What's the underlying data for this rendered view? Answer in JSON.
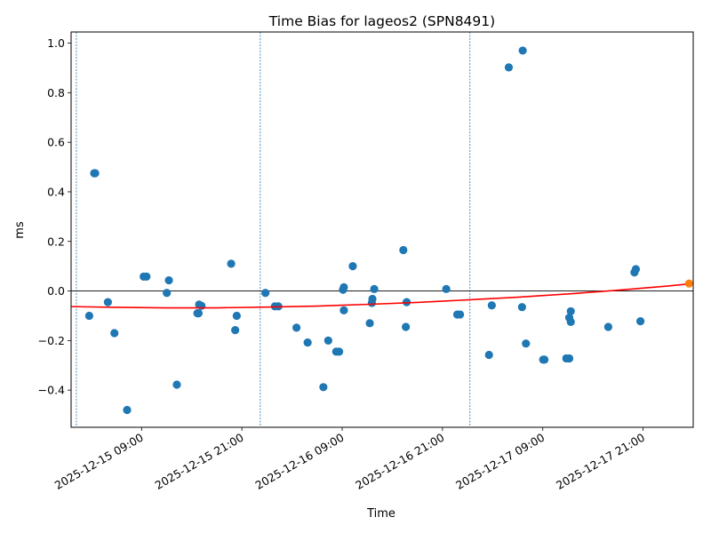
{
  "chart_data": {
    "type": "scatter",
    "title": "Time Bias for lageos2 (SPN8491)",
    "xlabel": "Time",
    "ylabel": "ms",
    "xlim": [
      "2025-12-15T00:34:00",
      "2025-12-18T03:00:00"
    ],
    "ylim": [
      -0.55,
      1.045
    ],
    "x_ticks": [
      {
        "t": "2025-12-15T09:00:00",
        "label": "2025-12-15 09:00"
      },
      {
        "t": "2025-12-15T21:00:00",
        "label": "2025-12-15 21:00"
      },
      {
        "t": "2025-12-16T09:00:00",
        "label": "2025-12-16 09:00"
      },
      {
        "t": "2025-12-16T21:00:00",
        "label": "2025-12-16 21:00"
      },
      {
        "t": "2025-12-17T09:00:00",
        "label": "2025-12-17 09:00"
      },
      {
        "t": "2025-12-17T21:00:00",
        "label": "2025-12-17 21:00"
      }
    ],
    "y_ticks": [
      -0.4,
      -0.2,
      0.0,
      0.2,
      0.4,
      0.6,
      0.8,
      1.0
    ],
    "vertical_lines": [
      "2025-12-15T01:12:00",
      "2025-12-15T23:12:00",
      "2025-12-17T00:17:00"
    ],
    "zero_line": 0.0,
    "grid": false,
    "point_color": "#1f77b4",
    "fit_color": "#ff0000",
    "highlight_color": "#ff7f0e",
    "vline_color": "#1f77b4",
    "points": [
      {
        "t": "2025-12-15T02:44:00",
        "y": -0.1
      },
      {
        "t": "2025-12-15T03:20:00",
        "y": 0.475
      },
      {
        "t": "2025-12-15T03:27:00",
        "y": 0.475
      },
      {
        "t": "2025-12-15T04:58:00",
        "y": -0.045
      },
      {
        "t": "2025-12-15T05:45:00",
        "y": -0.17
      },
      {
        "t": "2025-12-15T07:16:00",
        "y": -0.48
      },
      {
        "t": "2025-12-15T09:15:00",
        "y": 0.058
      },
      {
        "t": "2025-12-15T09:35:00",
        "y": 0.058
      },
      {
        "t": "2025-12-15T12:01:00",
        "y": -0.008
      },
      {
        "t": "2025-12-15T12:16:00",
        "y": 0.043
      },
      {
        "t": "2025-12-15T13:13:00",
        "y": -0.378
      },
      {
        "t": "2025-12-15T15:41:00",
        "y": -0.09
      },
      {
        "t": "2025-12-15T15:49:00",
        "y": -0.09
      },
      {
        "t": "2025-12-15T15:53:00",
        "y": -0.055
      },
      {
        "t": "2025-12-15T16:10:00",
        "y": -0.06
      },
      {
        "t": "2025-12-15T19:43:00",
        "y": 0.11
      },
      {
        "t": "2025-12-15T20:12:00",
        "y": -0.158
      },
      {
        "t": "2025-12-15T20:23:00",
        "y": -0.1
      },
      {
        "t": "2025-12-15T23:49:00",
        "y": -0.008
      },
      {
        "t": "2025-12-16T00:57:00",
        "y": -0.062
      },
      {
        "t": "2025-12-16T01:22:00",
        "y": -0.062
      },
      {
        "t": "2025-12-16T03:32:00",
        "y": -0.148
      },
      {
        "t": "2025-12-16T04:52:00",
        "y": -0.208
      },
      {
        "t": "2025-12-16T06:45:00",
        "y": -0.388
      },
      {
        "t": "2025-12-16T07:20:00",
        "y": -0.2
      },
      {
        "t": "2025-12-16T08:17:00",
        "y": -0.245
      },
      {
        "t": "2025-12-16T08:38:00",
        "y": -0.245
      },
      {
        "t": "2025-12-16T09:06:00",
        "y": 0.005
      },
      {
        "t": "2025-12-16T09:12:00",
        "y": 0.015
      },
      {
        "t": "2025-12-16T09:12:00",
        "y": -0.078
      },
      {
        "t": "2025-12-16T10:16:00",
        "y": 0.1
      },
      {
        "t": "2025-12-16T12:18:00",
        "y": -0.13
      },
      {
        "t": "2025-12-16T12:33:00",
        "y": -0.048
      },
      {
        "t": "2025-12-16T12:37:00",
        "y": -0.032
      },
      {
        "t": "2025-12-16T12:50:00",
        "y": 0.008
      },
      {
        "t": "2025-12-16T16:19:00",
        "y": 0.165
      },
      {
        "t": "2025-12-16T16:37:00",
        "y": -0.145
      },
      {
        "t": "2025-12-16T16:43:00",
        "y": -0.045
      },
      {
        "t": "2025-12-16T21:27:00",
        "y": 0.008
      },
      {
        "t": "2025-12-16T22:46:00",
        "y": -0.095
      },
      {
        "t": "2025-12-16T23:06:00",
        "y": -0.095
      },
      {
        "t": "2025-12-17T02:34:00",
        "y": -0.258
      },
      {
        "t": "2025-12-17T02:54:00",
        "y": -0.058
      },
      {
        "t": "2025-12-17T04:56:00",
        "y": 0.902
      },
      {
        "t": "2025-12-17T06:31:00",
        "y": -0.065
      },
      {
        "t": "2025-12-17T06:36:00",
        "y": 0.97
      },
      {
        "t": "2025-12-17T06:59:00",
        "y": -0.212
      },
      {
        "t": "2025-12-17T09:03:00",
        "y": -0.277
      },
      {
        "t": "2025-12-17T09:12:00",
        "y": -0.277
      },
      {
        "t": "2025-12-17T11:49:00",
        "y": -0.272
      },
      {
        "t": "2025-12-17T12:10:00",
        "y": -0.272
      },
      {
        "t": "2025-12-17T12:10:00",
        "y": -0.108
      },
      {
        "t": "2025-12-17T12:21:00",
        "y": -0.082
      },
      {
        "t": "2025-12-17T12:21:00",
        "y": -0.125
      },
      {
        "t": "2025-12-17T16:50:00",
        "y": -0.145
      },
      {
        "t": "2025-12-17T19:58:00",
        "y": 0.075
      },
      {
        "t": "2025-12-17T20:08:00",
        "y": 0.088
      },
      {
        "t": "2025-12-17T20:41:00",
        "y": -0.122
      }
    ],
    "highlight_point": {
      "t": "2025-12-18T02:30:00",
      "y": 0.03
    },
    "fit_curve": [
      {
        "t": "2025-12-15T00:34:00",
        "y": -0.063
      },
      {
        "t": "2025-12-15T06:00:00",
        "y": -0.066
      },
      {
        "t": "2025-12-15T12:00:00",
        "y": -0.068
      },
      {
        "t": "2025-12-15T18:00:00",
        "y": -0.068
      },
      {
        "t": "2025-12-16T00:00:00",
        "y": -0.065
      },
      {
        "t": "2025-12-16T06:00:00",
        "y": -0.061
      },
      {
        "t": "2025-12-16T12:00:00",
        "y": -0.054
      },
      {
        "t": "2025-12-16T18:00:00",
        "y": -0.046
      },
      {
        "t": "2025-12-17T00:00:00",
        "y": -0.036
      },
      {
        "t": "2025-12-17T06:00:00",
        "y": -0.025
      },
      {
        "t": "2025-12-17T12:00:00",
        "y": -0.012
      },
      {
        "t": "2025-12-17T18:00:00",
        "y": 0.003
      },
      {
        "t": "2025-12-18T00:00:00",
        "y": 0.02
      },
      {
        "t": "2025-12-18T03:00:00",
        "y": 0.03
      }
    ]
  }
}
